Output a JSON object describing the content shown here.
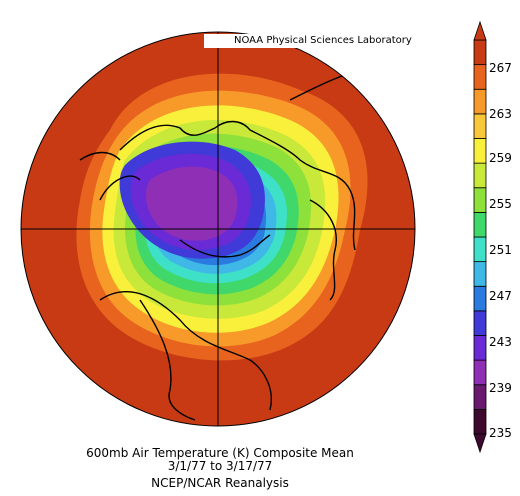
{
  "credit": "NOAA Physical Sciences Laboratory",
  "caption": {
    "line1": "600mb Air Temperature (K) Composite Mean",
    "line2": "3/1/77  to 3/17/77",
    "line3": "NCEP/NCAR Reanalysis"
  },
  "colorbar": {
    "ticks": [
      "267",
      "263",
      "259",
      "255",
      "251",
      "247",
      "243",
      "239",
      "235"
    ],
    "colors": [
      "#3d0a2e",
      "#6a1a6e",
      "#8e2fb5",
      "#6a2ad6",
      "#3f3ad8",
      "#2a7be0",
      "#3fb8e8",
      "#3fe0c8",
      "#40d86a",
      "#8ee03a",
      "#c8e83a",
      "#f8f03a",
      "#f8c83a",
      "#f89a2a",
      "#e8641e",
      "#c83a14"
    ]
  }
}
